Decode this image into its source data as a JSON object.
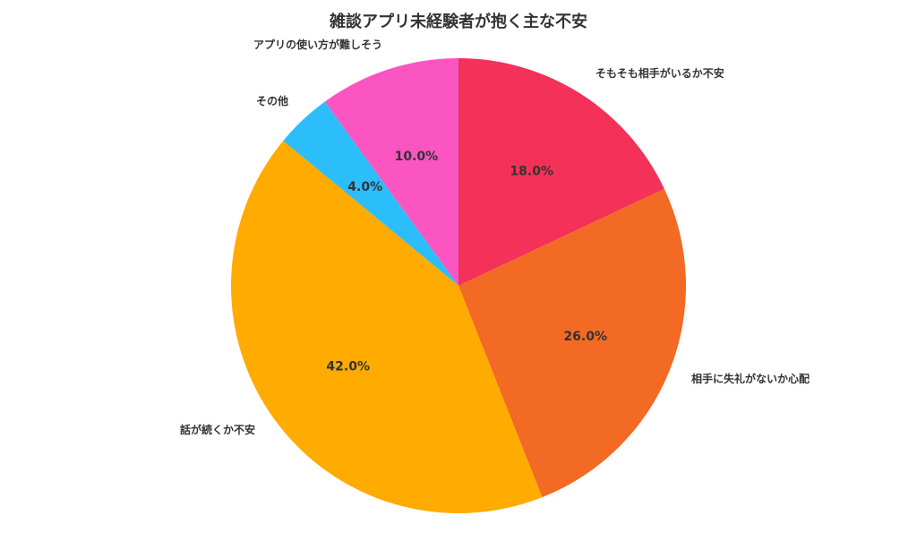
{
  "chart_data": {
    "type": "pie",
    "title": "雑談アプリ未経験者が抱く主な不安",
    "start": "12 o'clock",
    "direction": "clockwise",
    "slices": [
      {
        "label": "そもそも相手がいるか不安",
        "value": 18.0,
        "display": "18.0%",
        "color": "#F43158"
      },
      {
        "label": "相手に失礼がないか心配",
        "value": 26.0,
        "display": "26.0%",
        "color": "#F26A23"
      },
      {
        "label": "話が続くか不安",
        "value": 42.0,
        "display": "42.0%",
        "color": "#FFAB00"
      },
      {
        "label": "その他",
        "value": 4.0,
        "display": "4.0%",
        "color": "#2BBEFA"
      },
      {
        "label": "アプリの使い方が難しそう",
        "value": 10.0,
        "display": "10.0%",
        "color": "#FA55C1"
      }
    ]
  }
}
